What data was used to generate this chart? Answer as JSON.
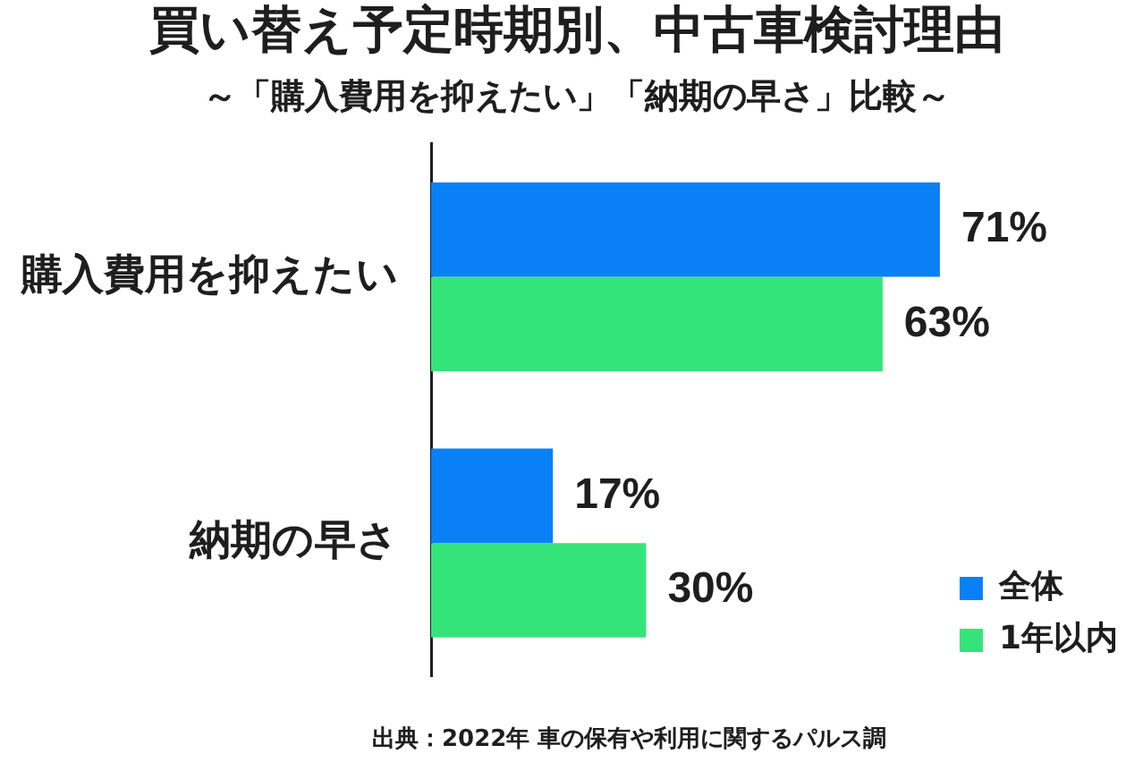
{
  "chart_data": {
    "type": "bar",
    "orientation": "horizontal",
    "title": "買い替え予定時期別、中古車検討理由",
    "subtitle": "～「購入費用を抑えたい」「納期の早さ」比較～",
    "categories": [
      "購入費用を抑えたい",
      "納期の早さ"
    ],
    "series": [
      {
        "name": "全体",
        "color": "#0a80f6",
        "values": [
          71,
          17
        ],
        "value_labels": [
          "71%",
          "17%"
        ]
      },
      {
        "name": "1年以内",
        "color": "#35e37b",
        "values": [
          63,
          30
        ],
        "value_labels": [
          "63%",
          "30%"
        ]
      }
    ],
    "legend": "bottom right",
    "annotations": [
      "出典：2022年 車の保有や利用に関するパルス調"
    ]
  }
}
